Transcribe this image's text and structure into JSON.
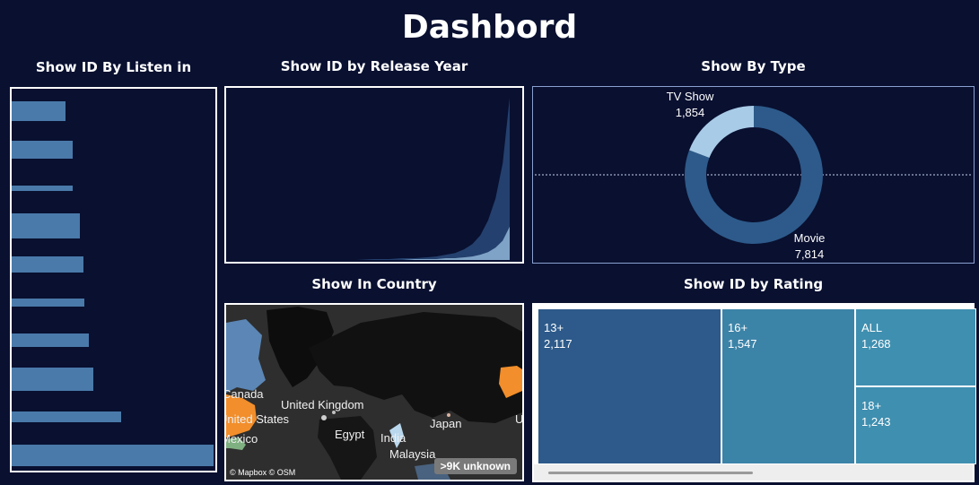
{
  "dashboard": {
    "title": "Dashbord"
  },
  "panels": {
    "listen_in": {
      "title": "Show ID By Listen in"
    },
    "release_year": {
      "title": "Show ID by Release Year"
    },
    "by_type": {
      "title": "Show By Type"
    },
    "country": {
      "title": "Show In Country"
    },
    "rating": {
      "title": "Show ID by Rating"
    }
  },
  "map": {
    "labels": [
      "Canada",
      "United States",
      "Mexico",
      "United Kingdom",
      "Egypt",
      "India",
      "Malaysia",
      "Japan",
      "U"
    ],
    "unknown_badge": ">9K unknown",
    "attribution": "© Mapbox © OSM"
  },
  "colors": {
    "background": "#091030",
    "bar": "#4a7aaa",
    "movie": "#2d5a8a",
    "tv_show": "#a8cbe8",
    "tile_dark": "#2d5a8a",
    "tile_teal": "#3f8fb0"
  },
  "chart_data": [
    {
      "type": "bar",
      "orientation": "horizontal",
      "title": "Show ID By Listen in",
      "values": [
        58,
        66,
        66,
        74,
        78,
        79,
        84,
        89,
        119,
        219
      ],
      "xlim": [
        0,
        221
      ]
    },
    {
      "type": "area",
      "title": "Show ID by Release Year",
      "series": [
        {
          "values": [
            0,
            0,
            0,
            1,
            1,
            2,
            2,
            3,
            4,
            6,
            8,
            12,
            18,
            28,
            45,
            70,
            110,
            185
          ]
        },
        {
          "values": [
            0,
            0,
            0,
            0,
            0,
            0,
            1,
            1,
            1,
            2,
            2,
            3,
            4,
            6,
            9,
            14,
            22,
            38
          ]
        }
      ],
      "ylim": [
        0,
        190
      ]
    },
    {
      "type": "pie",
      "title": "Show By Type",
      "slices": [
        {
          "label": "Movie",
          "value": 7814,
          "display": "7,814"
        },
        {
          "label": "TV Show",
          "value": 1854,
          "display": "1,854"
        }
      ]
    },
    {
      "type": "table",
      "title": "Show ID by Rating",
      "tiles": [
        {
          "label": "13+",
          "value": 2117,
          "display": "2,117"
        },
        {
          "label": "16+",
          "value": 1547,
          "display": "1,547"
        },
        {
          "label": "ALL",
          "value": 1268,
          "display": "1,268"
        },
        {
          "label": "18+",
          "value": 1243,
          "display": "1,243"
        }
      ]
    }
  ]
}
